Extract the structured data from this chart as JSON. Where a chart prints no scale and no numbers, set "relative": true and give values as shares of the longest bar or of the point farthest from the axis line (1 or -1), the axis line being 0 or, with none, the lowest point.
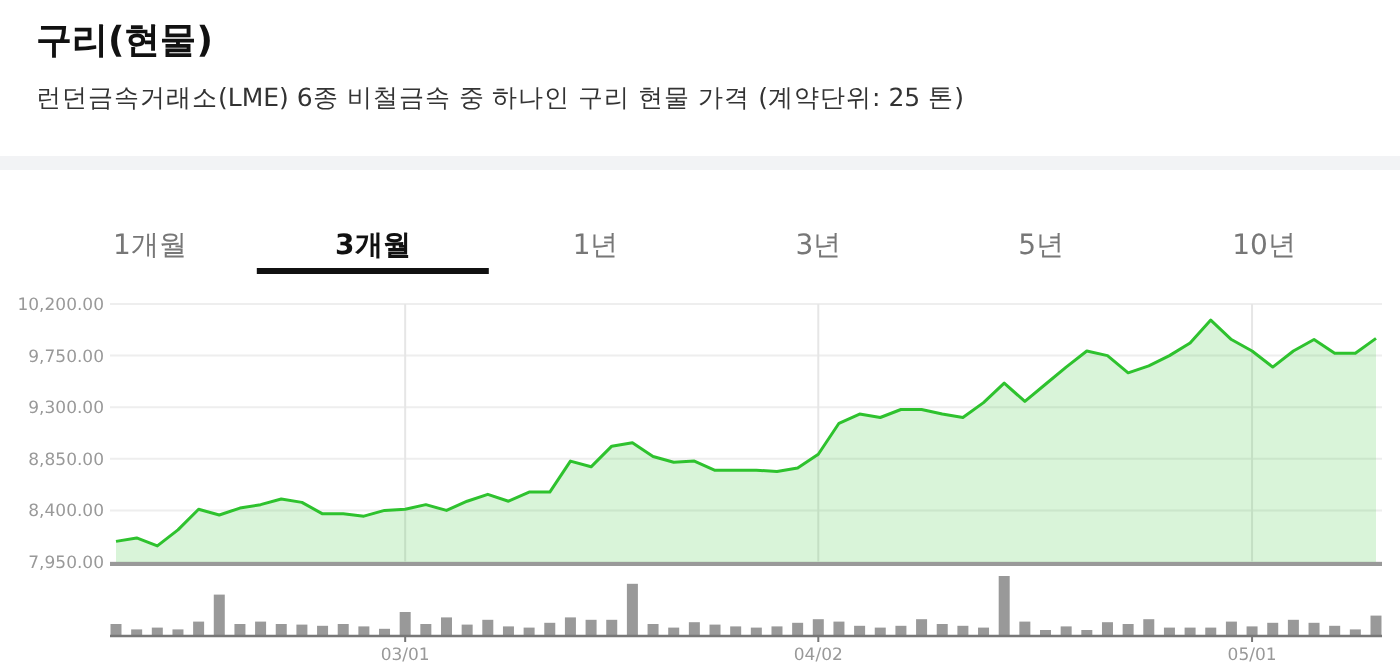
{
  "chart_data": [
    {
      "type": "area",
      "title": "구리(현물)",
      "subtitle": "런던금속거래소(LME) 6종 비철금속 중 하나인 구리 현물 가격 (계약단위: 25 톤)",
      "annotations": [
        "1개월",
        "3개월",
        "1년",
        "3년",
        "5년",
        "10년"
      ],
      "color": "#2ec22e",
      "values": [
        8130,
        8160,
        8090,
        8230,
        8410,
        8360,
        8420,
        8450,
        8500,
        8470,
        8370,
        8370,
        8350,
        8400,
        8410,
        8450,
        8400,
        8480,
        8540,
        8480,
        8560,
        8560,
        8830,
        8780,
        8960,
        8990,
        8870,
        8820,
        8830,
        8750,
        8750,
        8750,
        8740,
        8770,
        8890,
        9160,
        9240,
        9210,
        9280,
        9280,
        9240,
        9210,
        9340,
        9510,
        9350,
        9500,
        9650,
        9790,
        9750,
        9600,
        9660,
        9750,
        9860,
        10060,
        9890,
        9790,
        9650,
        9790,
        9890,
        9770,
        9770,
        9900
      ],
      "ylim": [
        7950,
        10200
      ],
      "yticks": [
        {
          "value": 7950,
          "label": "7,950.00"
        },
        {
          "value": 8400,
          "label": "8,400.00"
        },
        {
          "value": 8850,
          "label": "8,850.00"
        },
        {
          "value": 9300,
          "label": "9,300.00"
        },
        {
          "value": 9750,
          "label": "9,750.00"
        },
        {
          "value": 10200,
          "label": "10,200.00"
        }
      ],
      "grid": true,
      "tick_labels": "y"
    },
    {
      "type": "bar",
      "relative": true,
      "color": "#999999",
      "tick_labels": "x",
      "categories": [
        null,
        null,
        null,
        null,
        null,
        null,
        null,
        null,
        null,
        null,
        null,
        null,
        null,
        null,
        "03/01",
        null,
        null,
        null,
        null,
        null,
        null,
        null,
        null,
        null,
        null,
        null,
        null,
        null,
        null,
        null,
        null,
        null,
        null,
        null,
        "04/02",
        null,
        null,
        null,
        null,
        null,
        null,
        null,
        null,
        null,
        null,
        null,
        null,
        null,
        null,
        null,
        null,
        null,
        null,
        null,
        null,
        "05/01",
        null,
        null,
        null,
        null,
        null,
        null
      ],
      "values": [
        0.2,
        0.11,
        0.14,
        0.11,
        0.24,
        0.69,
        0.2,
        0.24,
        0.2,
        0.19,
        0.17,
        0.2,
        0.16,
        0.12,
        0.4,
        0.2,
        0.31,
        0.19,
        0.27,
        0.16,
        0.14,
        0.22,
        0.31,
        0.27,
        0.27,
        0.87,
        0.2,
        0.14,
        0.23,
        0.19,
        0.16,
        0.14,
        0.16,
        0.22,
        0.28,
        0.24,
        0.17,
        0.14,
        0.17,
        0.28,
        0.2,
        0.17,
        0.14,
        1,
        0.24,
        0.1,
        0.16,
        0.1,
        0.23,
        0.2,
        0.28,
        0.14,
        0.14,
        0.14,
        0.24,
        0.16,
        0.22,
        0.27,
        0.22,
        0.17,
        0.11,
        0.34
      ]
    }
  ]
}
